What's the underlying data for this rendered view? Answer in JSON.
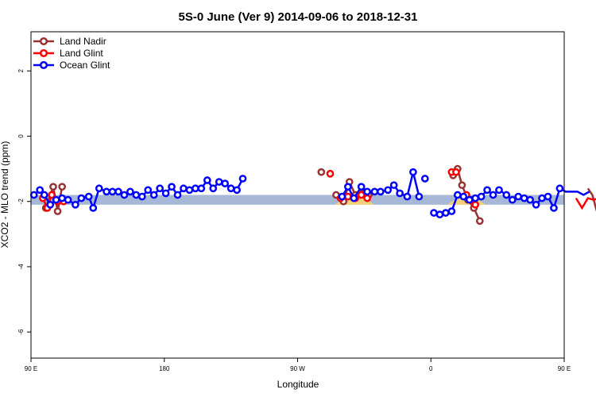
{
  "chart_data": {
    "type": "line",
    "title": "5S-0 June (Ver 9)   2014-09-06 to 2018-12-31",
    "xlabel": "Longitude",
    "ylabel": "XCO2 - MLO trend (ppm)",
    "xlim": [
      90,
      450
    ],
    "ylim": [
      -6.8,
      3.2
    ],
    "x_ticks": [
      {
        "value": 90,
        "label": "90 E"
      },
      {
        "value": 180,
        "label": "180"
      },
      {
        "value": 270,
        "label": "90 W"
      },
      {
        "value": 360,
        "label": "0"
      },
      {
        "value": 450,
        "label": "90 E"
      },
      {
        "value": 540,
        "label": "180"
      }
    ],
    "y_ticks": [
      {
        "value": 2,
        "label": "2"
      },
      {
        "value": 0,
        "label": "0"
      },
      {
        "value": -2,
        "label": "-2"
      },
      {
        "value": -4,
        "label": "-4"
      },
      {
        "value": -6,
        "label": "-6"
      }
    ],
    "legend_position": "top-left",
    "colors": {
      "land_nadir": "#993333",
      "land_glint": "#ff0000",
      "ocean_glint": "#0000ff",
      "band_ocean": "#a6b8d6",
      "band_land": "#f2d27a"
    },
    "band": {
      "y_range": [
        -2.1,
        -1.8
      ]
    },
    "land_segments": [
      [
        295,
        322
      ],
      [
        371,
        397
      ],
      [
        463,
        482
      ],
      [
        519,
        528
      ]
    ],
    "series": [
      {
        "name": "Land Nadir",
        "key": "land_nadir",
        "segments": [
          [
            [
              100,
              -2.2
            ],
            [
              105,
              -1.55
            ],
            [
              108,
              -2.3
            ],
            [
              111,
              -1.55
            ]
          ],
          [
            [
              286,
              -1.1
            ]
          ],
          [
            [
              296,
              -1.8
            ],
            [
              301,
              -2.0
            ],
            [
              305,
              -1.4
            ],
            [
              309,
              -1.8
            ],
            [
              314,
              -1.75
            ],
            [
              318,
              -1.8
            ]
          ],
          [
            [
              375,
              -1.2
            ],
            [
              378,
              -1.0
            ],
            [
              381,
              -1.5
            ],
            [
              385,
              -1.95
            ],
            [
              389,
              -2.2
            ],
            [
              393,
              -2.6
            ]
          ],
          [
            [
              466,
              -1.6
            ],
            [
              469,
              -1.8
            ],
            [
              472,
              -2.3
            ],
            [
              475,
              -1.55
            ],
            [
              478,
              -1.9
            ]
          ]
        ]
      },
      {
        "name": "Land Glint",
        "key": "land_glint",
        "segments": [
          [
            [
              98,
              -1.9
            ],
            [
              101,
              -2.2
            ],
            [
              104,
              -1.8
            ],
            [
              108,
              -2.0
            ],
            [
              112,
              -2.0
            ]
          ],
          [
            [
              292,
              -1.15
            ]
          ],
          [
            [
              299,
              -1.9
            ],
            [
              304,
              -1.85
            ],
            [
              309,
              -1.9
            ],
            [
              313,
              -1.8
            ],
            [
              317,
              -1.9
            ]
          ],
          [
            [
              374,
              -1.1
            ],
            [
              377,
              -1.1
            ]
          ],
          [
            [
              384,
              -1.8
            ],
            [
              387,
              -1.95
            ],
            [
              390,
              -2.1
            ]
          ],
          [
            [
              458,
              -1.9
            ],
            [
              462,
              -2.2
            ],
            [
              466,
              -1.9
            ],
            [
              470,
              -1.95
            ],
            [
              473,
              -1.9
            ]
          ]
        ]
      },
      {
        "name": "Ocean Glint",
        "key": "ocean_glint",
        "segments": [
          [
            [
              92,
              -1.8
            ],
            [
              96,
              -1.65
            ],
            [
              99,
              -1.8
            ],
            [
              103,
              -2.1
            ],
            [
              107,
              -1.95
            ],
            [
              111,
              -1.9
            ],
            [
              115,
              -1.95
            ],
            [
              120,
              -2.1
            ],
            [
              124,
              -1.9
            ],
            [
              129,
              -1.85
            ],
            [
              132,
              -2.2
            ],
            [
              136,
              -1.6
            ],
            [
              141,
              -1.7
            ],
            [
              145,
              -1.7
            ],
            [
              149,
              -1.7
            ],
            [
              153,
              -1.8
            ],
            [
              157,
              -1.7
            ],
            [
              161,
              -1.8
            ],
            [
              165,
              -1.85
            ],
            [
              169,
              -1.65
            ],
            [
              173,
              -1.8
            ],
            [
              177,
              -1.6
            ],
            [
              181,
              -1.75
            ],
            [
              185,
              -1.55
            ],
            [
              189,
              -1.8
            ],
            [
              193,
              -1.6
            ],
            [
              197,
              -1.65
            ],
            [
              201,
              -1.6
            ],
            [
              205,
              -1.6
            ],
            [
              209,
              -1.35
            ],
            [
              213,
              -1.6
            ],
            [
              217,
              -1.4
            ],
            [
              221,
              -1.45
            ],
            [
              225,
              -1.6
            ],
            [
              229,
              -1.65
            ],
            [
              233,
              -1.3
            ]
          ],
          [
            [
              300,
              -1.85
            ],
            [
              304,
              -1.55
            ],
            [
              308,
              -1.9
            ],
            [
              313,
              -1.55
            ],
            [
              317,
              -1.7
            ],
            [
              322,
              -1.7
            ],
            [
              326,
              -1.7
            ],
            [
              331,
              -1.65
            ],
            [
              335,
              -1.5
            ],
            [
              339,
              -1.75
            ],
            [
              344,
              -1.85
            ],
            [
              348,
              -1.1
            ],
            [
              352,
              -1.85
            ]
          ],
          [
            [
              356,
              -1.3
            ]
          ],
          [
            [
              362,
              -2.35
            ],
            [
              366,
              -2.4
            ],
            [
              370,
              -2.35
            ],
            [
              374,
              -2.3
            ],
            [
              378,
              -1.8
            ],
            [
              382,
              -1.85
            ],
            [
              386,
              -1.95
            ],
            [
              390,
              -1.9
            ],
            [
              394,
              -1.85
            ],
            [
              398,
              -1.65
            ],
            [
              402,
              -1.8
            ],
            [
              406,
              -1.65
            ],
            [
              411,
              -1.8
            ],
            [
              415,
              -1.95
            ],
            [
              419,
              -1.85
            ],
            [
              423,
              -1.9
            ],
            [
              427,
              -1.95
            ],
            [
              431,
              -2.1
            ],
            [
              435,
              -1.9
            ],
            [
              439,
              -1.85
            ],
            [
              443,
              -2.2
            ],
            [
              447,
              -1.6
            ],
            [
              451,
              -1.7
            ],
            [
              455,
              -1.7
            ],
            [
              459,
              -1.7
            ],
            [
              463,
              -1.8
            ],
            [
              467,
              -1.7
            ]
          ]
        ]
      }
    ]
  }
}
